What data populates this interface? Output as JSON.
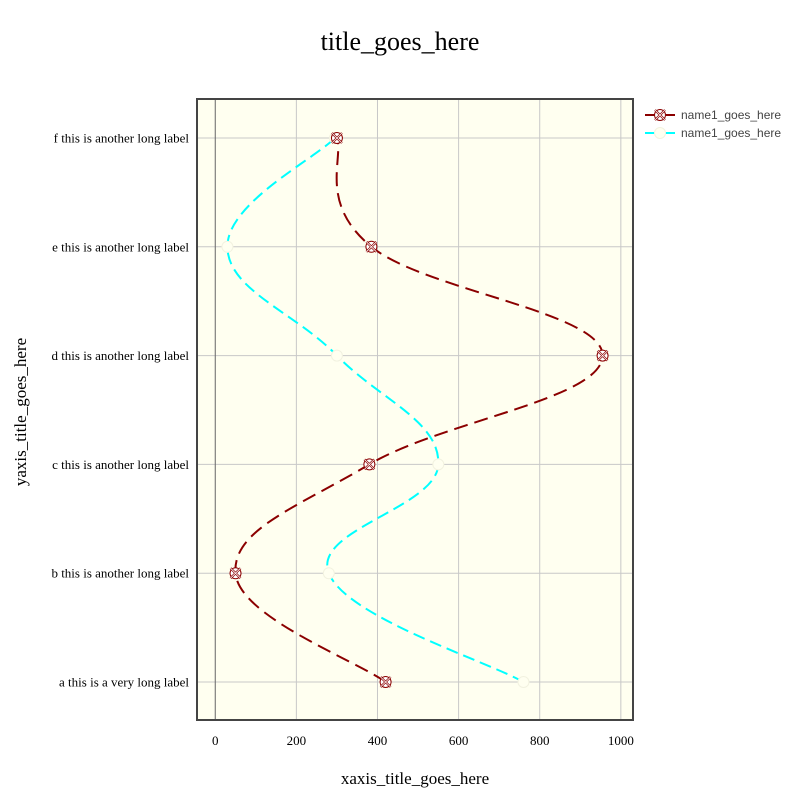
{
  "chart_data": {
    "type": "line",
    "title": "title_goes_here",
    "xlabel": "xaxis_title_goes_here",
    "ylabel": "yaxis_title_goes_here",
    "xlim": [
      -45,
      1030
    ],
    "x_ticks": [
      0,
      200,
      400,
      600,
      800,
      1000
    ],
    "x_tick_labels": [
      "0",
      "200",
      "400",
      "600",
      "800",
      "1000"
    ],
    "categories": [
      "a this is a very long label",
      "b this is another long label",
      "c this is another long label",
      "d this is another long label",
      "e this is another long label",
      "f this is another long label"
    ],
    "orientation": "horizontal",
    "line_shape": "spline",
    "grid": true,
    "legend_position": "top-right",
    "plot_background": "#fffff0",
    "series": [
      {
        "name": "name1_goes_here",
        "values": [
          420,
          50,
          380,
          955,
          385,
          300
        ],
        "color": "#8b0000",
        "line_style": "long-dash",
        "marker": "x-in-circle",
        "marker_fill": "#8b0000"
      },
      {
        "name": "name1_goes_here",
        "values": [
          760,
          280,
          550,
          300,
          30,
          295
        ],
        "color": "#00ffff",
        "line_style": "dash",
        "marker": "circle",
        "marker_fill": "#fffff0"
      }
    ]
  }
}
